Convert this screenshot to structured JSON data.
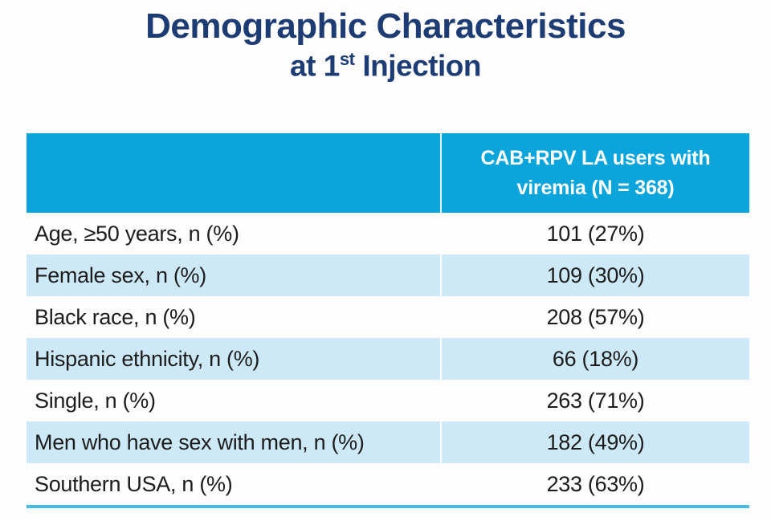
{
  "title": {
    "main": "Demographic Characteristics",
    "subtitle_prefix": "at 1",
    "subtitle_sup": "st",
    "subtitle_suffix": " Injection"
  },
  "table": {
    "header": {
      "label_col": "",
      "value_line1": "CAB+RPV LA users with",
      "value_line2": "viremia (N = 368)"
    },
    "rows": [
      {
        "label": "Age, ≥50 years, n (%)",
        "value": "101 (27%)"
      },
      {
        "label": "Female sex, n (%)",
        "value": "109 (30%)"
      },
      {
        "label": "Black race, n (%)",
        "value": "208 (57%)"
      },
      {
        "label": "Hispanic ethnicity, n (%)",
        "value": "66 (18%)"
      },
      {
        "label": "Single, n (%)",
        "value": "263 (71%)"
      },
      {
        "label": "Men who have sex with men, n (%)",
        "value": "182 (49%)"
      },
      {
        "label": "Southern USA, n (%)",
        "value": "233 (63%)"
      }
    ]
  },
  "colors": {
    "header_bg": "#0BA4DB",
    "header_text": "#FFFFFF",
    "row_alt_bg": "#CDE9F7",
    "bottom_rule": "#45BAE4",
    "title_text": "#1E3C74",
    "body_text": "#1C1C1C"
  }
}
